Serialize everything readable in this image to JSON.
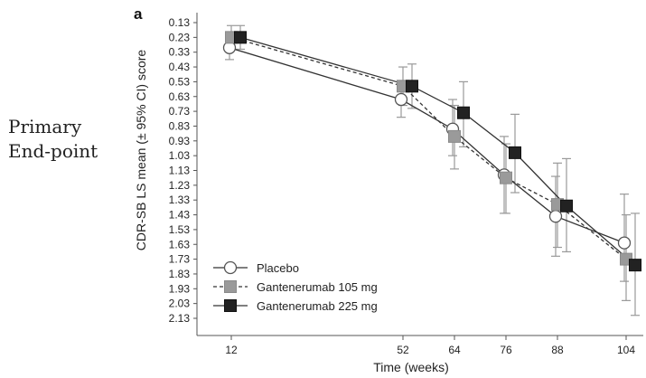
{
  "side_label": {
    "line1": "Primary",
    "line2": "End-point"
  },
  "chart_data": {
    "type": "line",
    "panel_label": "a",
    "xlabel": "Time (weeks)",
    "ylabel": "CDR-SB LS mean (± 95% CI) score",
    "x": [
      12,
      52,
      64,
      76,
      88,
      104
    ],
    "x_tick_labels": [
      "12",
      "52",
      "64",
      "76",
      "88",
      "104"
    ],
    "y_ticks": [
      "0.13",
      "0.23",
      "0.33",
      "0.43",
      "0.53",
      "0.63",
      "0.73",
      "0.83",
      "0.93",
      "1.03",
      "1.13",
      "1.23",
      "1.33",
      "1.43",
      "1.53",
      "1.63",
      "1.73",
      "1.83",
      "1.93",
      "2.03",
      "2.13"
    ],
    "ylim": [
      0.13,
      2.13
    ],
    "y_inverted": true,
    "grid": false,
    "legend_position": "bottom-left",
    "series": [
      {
        "name": "Placebo",
        "marker": "open-circle",
        "line_style": "solid",
        "color": "#ffffff",
        "values": [
          0.3,
          0.65,
          0.85,
          1.16,
          1.44,
          1.62
        ],
        "ci_low": [
          0.22,
          0.55,
          0.65,
          0.9,
          1.17,
          1.29
        ],
        "ci_high": [
          0.38,
          0.77,
          1.03,
          1.42,
          1.71,
          1.88
        ]
      },
      {
        "name": "Gantenerumab 105 mg",
        "marker": "square",
        "line_style": "dashed",
        "color": "#9a9a9a",
        "values": [
          0.23,
          0.56,
          0.9,
          1.18,
          1.36,
          1.73
        ],
        "ci_low": [
          0.15,
          0.43,
          0.69,
          0.95,
          1.08,
          1.43
        ],
        "ci_high": [
          0.3,
          0.69,
          1.12,
          1.42,
          1.65,
          2.01
        ]
      },
      {
        "name": "Gantenerumab 225 mg",
        "marker": "square",
        "line_style": "solid",
        "color": "#222222",
        "values": [
          0.23,
          0.56,
          0.74,
          1.01,
          1.37,
          1.77
        ],
        "ci_low": [
          0.15,
          0.41,
          0.53,
          0.75,
          1.05,
          1.42
        ],
        "ci_high": [
          0.31,
          0.71,
          0.97,
          1.28,
          1.68,
          2.11
        ]
      }
    ]
  }
}
